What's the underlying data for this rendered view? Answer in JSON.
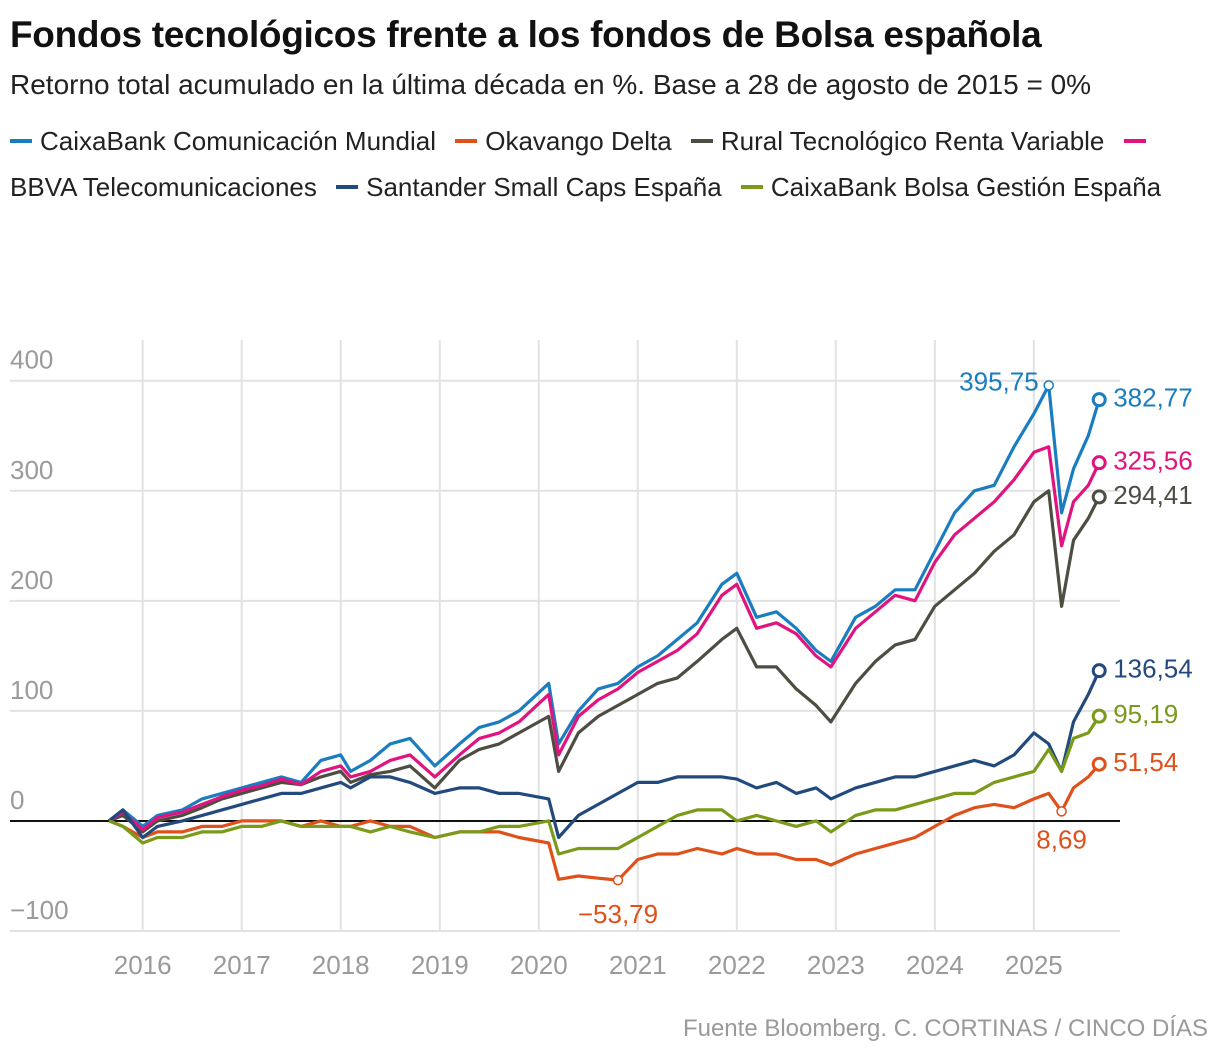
{
  "chart_data": {
    "type": "line",
    "title": "Fondos tecnológicos frente a los fondos de Bolsa española",
    "subtitle": "Retorno total acumulado en la última década en %. Base a 28 de agosto de 2015 = 0%",
    "source": "Fuente Bloomberg. C. CORTINAS / CINCO DÍAS",
    "x": [
      2015.66,
      2015.8,
      2016.0,
      2016.15,
      2016.4,
      2016.6,
      2016.8,
      2017.0,
      2017.2,
      2017.4,
      2017.6,
      2017.8,
      2018.0,
      2018.1,
      2018.3,
      2018.5,
      2018.7,
      2018.95,
      2019.2,
      2019.4,
      2019.6,
      2019.8,
      2020.1,
      2020.2,
      2020.4,
      2020.6,
      2020.8,
      2021.0,
      2021.2,
      2021.4,
      2021.6,
      2021.85,
      2022.0,
      2022.2,
      2022.4,
      2022.6,
      2022.8,
      2022.95,
      2023.2,
      2023.4,
      2023.6,
      2023.8,
      2024.0,
      2024.2,
      2024.4,
      2024.6,
      2024.8,
      2025.0,
      2025.15,
      2025.28,
      2025.4,
      2025.55,
      2025.66
    ],
    "series": [
      {
        "name": "CaixaBank Comunicación Mundial",
        "color": "#1a7dc0",
        "values": [
          0,
          10,
          -5,
          5,
          10,
          20,
          25,
          30,
          35,
          40,
          35,
          55,
          60,
          45,
          55,
          70,
          75,
          50,
          70,
          85,
          90,
          100,
          125,
          70,
          100,
          120,
          125,
          140,
          150,
          165,
          180,
          215,
          225,
          185,
          190,
          175,
          155,
          145,
          185,
          195,
          210,
          210,
          245,
          280,
          300,
          305,
          340,
          370,
          395.75,
          280,
          320,
          350,
          382.77
        ]
      },
      {
        "name": "Okavango Delta",
        "color": "#e0501a",
        "values": [
          0,
          -5,
          -15,
          -10,
          -10,
          -5,
          -5,
          0,
          0,
          0,
          -5,
          0,
          -5,
          -5,
          0,
          -5,
          -5,
          -15,
          -10,
          -10,
          -10,
          -15,
          -20,
          -53,
          -50,
          -52,
          -53.79,
          -35,
          -30,
          -30,
          -25,
          -30,
          -25,
          -30,
          -30,
          -35,
          -35,
          -40,
          -30,
          -25,
          -20,
          -15,
          -5,
          5,
          12,
          15,
          12,
          20,
          25,
          8.69,
          30,
          40,
          51.54
        ]
      },
      {
        "name": "Rural Tecnológico Renta Variable",
        "color": "#4d4d42",
        "values": [
          0,
          5,
          -10,
          0,
          5,
          12,
          20,
          25,
          30,
          35,
          33,
          40,
          45,
          35,
          42,
          45,
          50,
          30,
          55,
          65,
          70,
          80,
          95,
          45,
          80,
          95,
          105,
          115,
          125,
          130,
          145,
          165,
          175,
          140,
          140,
          120,
          105,
          90,
          125,
          145,
          160,
          165,
          195,
          210,
          225,
          245,
          260,
          290,
          300,
          195,
          255,
          275,
          294.41
        ]
      },
      {
        "name": "BBVA Telecomunicaciones",
        "color": "#e0147f",
        "values": [
          0,
          8,
          -8,
          3,
          8,
          15,
          22,
          28,
          32,
          38,
          33,
          45,
          50,
          40,
          45,
          55,
          60,
          40,
          60,
          75,
          80,
          90,
          115,
          60,
          95,
          110,
          120,
          135,
          145,
          155,
          170,
          205,
          215,
          175,
          180,
          170,
          150,
          140,
          175,
          190,
          205,
          200,
          235,
          260,
          275,
          290,
          310,
          335,
          340,
          250,
          290,
          305,
          325.56
        ]
      },
      {
        "name": "Santander Small Caps España",
        "color": "#224a7c",
        "values": [
          0,
          10,
          -15,
          -5,
          0,
          5,
          10,
          15,
          20,
          25,
          25,
          30,
          35,
          30,
          40,
          40,
          35,
          25,
          30,
          30,
          25,
          25,
          20,
          -15,
          5,
          15,
          25,
          35,
          35,
          40,
          40,
          40,
          38,
          30,
          35,
          25,
          30,
          20,
          30,
          35,
          40,
          40,
          45,
          50,
          55,
          50,
          60,
          80,
          70,
          45,
          90,
          115,
          136.54
        ]
      },
      {
        "name": "CaixaBank Bolsa Gestión España",
        "color": "#7a9a1a",
        "values": [
          0,
          -5,
          -20,
          -15,
          -15,
          -10,
          -10,
          -5,
          -5,
          0,
          -5,
          -5,
          -5,
          -5,
          -10,
          -5,
          -10,
          -15,
          -10,
          -10,
          -5,
          -5,
          0,
          -30,
          -25,
          -25,
          -25,
          -15,
          -5,
          5,
          10,
          10,
          0,
          5,
          0,
          -5,
          0,
          -10,
          5,
          10,
          10,
          15,
          20,
          25,
          25,
          35,
          40,
          45,
          65,
          45,
          75,
          80,
          95.19
        ]
      }
    ],
    "annotations": [
      {
        "x": 2025.15,
        "y": 395.75,
        "label": "395,75",
        "color": "#1a7dc0"
      },
      {
        "x": 2025.66,
        "y": 382.77,
        "label": "382,77",
        "color": "#1a7dc0"
      },
      {
        "x": 2025.66,
        "y": 325.56,
        "label": "325,56",
        "color": "#e0147f"
      },
      {
        "x": 2025.66,
        "y": 294.41,
        "label": "294,41",
        "color": "#4d4d42"
      },
      {
        "x": 2025.66,
        "y": 136.54,
        "label": "136,54",
        "color": "#224a7c"
      },
      {
        "x": 2025.66,
        "y": 95.19,
        "label": "95,19",
        "color": "#7a9a1a"
      },
      {
        "x": 2025.66,
        "y": 51.54,
        "label": "51,54",
        "color": "#e0501a"
      },
      {
        "x": 2025.28,
        "y": 8.69,
        "label": "8,69",
        "color": "#e0501a"
      },
      {
        "x": 2020.8,
        "y": -53.79,
        "label": "−53,79",
        "color": "#e0501a"
      }
    ],
    "xlim": [
      2014.66,
      2025.87
    ],
    "xticks": [
      2016,
      2017,
      2018,
      2019,
      2020,
      2021,
      2022,
      2023,
      2024,
      2025
    ],
    "ylim": [
      -100,
      437
    ],
    "yticks": [
      {
        "value": -100,
        "label": "−100"
      },
      0,
      100,
      200,
      300,
      400
    ],
    "grid": true
  }
}
